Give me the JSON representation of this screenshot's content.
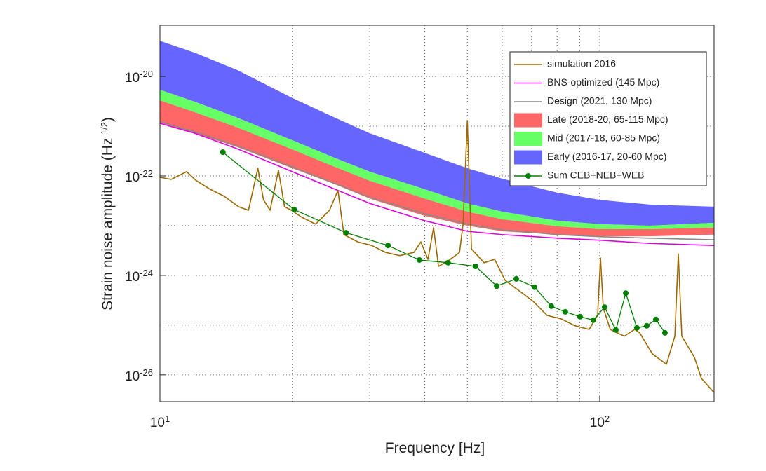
{
  "chart_data": {
    "type": "line",
    "xlabel": "Frequency [Hz]",
    "ylabel": {
      "text": "Strain noise amplitude (Hz",
      "sup": "-1/2",
      "end": ")"
    },
    "xscale": "log",
    "yscale": "log",
    "xlim": [
      10,
      182
    ],
    "ylim": [
      2.9e-27,
      1.07e-19
    ],
    "xticks": [
      {
        "value": 10,
        "label": "10",
        "exponent": "1"
      },
      {
        "value": 100,
        "label": "10",
        "exponent": "2"
      }
    ],
    "xminor": [
      20,
      30,
      40,
      50,
      60,
      70,
      80,
      90
    ],
    "yticks": [
      {
        "value": 1e-26,
        "label": "10",
        "exponent": "-26"
      },
      {
        "value": 1e-24,
        "label": "10",
        "exponent": "-24"
      },
      {
        "value": 1e-22,
        "label": "10",
        "exponent": "-22"
      },
      {
        "value": 1e-20,
        "label": "10",
        "exponent": "-20"
      }
    ],
    "yminor": [
      1e-25,
      1e-23,
      1e-21
    ],
    "grid": true,
    "legend": "upper right",
    "series": [
      {
        "name": "simulation 2016",
        "color": "#9c6a00",
        "type": "line",
        "x": [
          10,
          10.6,
          11.5,
          12.1,
          13.0,
          14.0,
          15.1,
          15.9,
          16.7,
          17.2,
          17.8,
          18.6,
          19.2,
          19.9,
          21.0,
          22.6,
          24.3,
          25.4,
          26.2,
          28.2,
          30.3,
          32.6,
          35.1,
          37.8,
          39.2,
          40.7,
          41.9,
          43.0,
          45.4,
          48.0,
          48.9,
          50.0,
          51.1,
          54.6,
          57.7,
          60.9,
          65.6,
          70.6,
          75.9,
          81.7,
          87.9,
          94.6,
          98.9,
          100.4,
          101.9,
          105.7,
          113.7,
          120.1,
          123.3,
          131.7,
          141.8,
          148.2,
          150.9,
          153.7,
          164.2,
          170.3,
          182
        ],
        "values": [
          9.4e-23,
          8.5e-23,
          1.22e-22,
          8e-23,
          5.4e-23,
          3.9e-23,
          2.4e-23,
          2.04e-23,
          1.43e-22,
          3.3e-23,
          2.04e-23,
          1.3e-22,
          2.4e-23,
          2.04e-23,
          1.48e-23,
          1.07e-23,
          2.04e-23,
          5.1e-23,
          6.6e-24,
          4.7e-24,
          4e-24,
          2.9e-24,
          2.5e-24,
          2.9e-24,
          4.7e-24,
          2.1e-24,
          9.1e-24,
          1.52e-24,
          2e-24,
          2.9e-24,
          1.07e-23,
          1.3e-21,
          3.4e-24,
          1.8e-24,
          2.1e-24,
          8e-25,
          4.9e-25,
          3e-25,
          1.57e-25,
          1.34e-25,
          9.7e-26,
          8.2e-26,
          1.57e-25,
          2.25e-24,
          2.18e-25,
          8.2e-26,
          6e-26,
          8.2e-26,
          7e-26,
          2.65e-26,
          1.63e-26,
          6e-26,
          2.7e-24,
          6e-26,
          2.25e-26,
          8.5e-27,
          4.4e-27
        ]
      },
      {
        "name": "BNS-optimized (145 Mpc)",
        "color": "#e000e0",
        "type": "line",
        "x": [
          10,
          12,
          15,
          20,
          25,
          30,
          40,
          50,
          60,
          80,
          100,
          130,
          182
        ],
        "values": [
          1.14e-21,
          7.2e-22,
          3.5e-22,
          1.22e-22,
          5.4e-23,
          2.8e-23,
          1.26e-23,
          7.7e-24,
          6.6e-24,
          5.6e-24,
          5.1e-24,
          4.4e-24,
          4e-24
        ]
      },
      {
        "name": "Design (2021, 130 Mpc)",
        "color": "#8a8a8a",
        "type": "line",
        "x": [
          10,
          12,
          15,
          20,
          25,
          30,
          40,
          50,
          60,
          80,
          100,
          130,
          182
        ],
        "values": [
          1.22e-21,
          7.7e-22,
          4e-22,
          1.52e-22,
          7e-23,
          3.7e-23,
          1.73e-23,
          1.07e-23,
          8.2e-24,
          6.6e-24,
          6e-24,
          5.6e-24,
          5.2e-24
        ]
      },
      {
        "name": "Late (2018-20, 65-115 Mpc)",
        "color": "#ff6666",
        "type": "band",
        "x": [
          10,
          12,
          15,
          20,
          25,
          30,
          40,
          50,
          60,
          80,
          100,
          130,
          182
        ],
        "upper": [
          3.3e-21,
          1.91e-21,
          9.4e-22,
          3.4e-22,
          1.52e-22,
          8e-23,
          3.5e-23,
          1.91e-23,
          1.34e-23,
          9.7e-24,
          8.5e-24,
          8.5e-24,
          9.1e-24
        ],
        "lower": [
          1.17e-21,
          7.2e-22,
          3.8e-22,
          1.43e-22,
          6.8e-23,
          3.5e-23,
          1.57e-23,
          1e-23,
          7.7e-24,
          6.6e-24,
          6.1e-24,
          6.1e-24,
          6.6e-24
        ]
      },
      {
        "name": "Mid (2017-18, 60-85 Mpc)",
        "color": "#66ff66",
        "type": "band",
        "x": [
          10,
          12,
          15,
          20,
          25,
          30,
          40,
          50,
          60,
          80,
          100,
          130,
          182
        ],
        "upper": [
          5.4e-21,
          3.1e-21,
          1.48e-21,
          5.2e-22,
          2.3e-22,
          1.22e-22,
          5.4e-23,
          2.8e-23,
          1.91e-23,
          1.26e-23,
          1.07e-23,
          1e-23,
          1.14e-23
        ],
        "lower": [
          3.3e-21,
          1.91e-21,
          9.4e-22,
          3.4e-22,
          1.52e-22,
          8e-23,
          3.5e-23,
          1.91e-23,
          1.34e-23,
          9.7e-24,
          8.5e-24,
          8.5e-24,
          9.1e-24
        ]
      },
      {
        "name": "Early (2016-17, 20-60 Mpc)",
        "color": "#6666ff",
        "type": "band",
        "x": [
          10,
          12,
          15,
          20,
          25,
          30,
          40,
          50,
          60,
          80,
          100,
          130,
          182
        ],
        "upper": [
          5.2e-20,
          3e-20,
          1.34e-20,
          3.7e-21,
          1.48e-21,
          7.2e-22,
          2.9e-22,
          1.43e-22,
          8.8e-23,
          4.6e-23,
          3.3e-23,
          2.65e-23,
          2.4e-23
        ],
        "lower": [
          5.4e-21,
          3.1e-21,
          1.48e-21,
          5.2e-22,
          2.3e-22,
          1.22e-22,
          5.4e-23,
          2.8e-23,
          1.91e-23,
          1.26e-23,
          1.07e-23,
          1e-23,
          1.14e-23
        ]
      },
      {
        "name": "Sum CEB+NEB+WEB",
        "color": "#008000",
        "type": "line",
        "marker": "circle",
        "x": [
          13.9,
          20.2,
          26.5,
          33.0,
          38.9,
          45.2,
          52.2,
          58.3,
          64.6,
          71.1,
          77.6,
          83.5,
          90.2,
          96.7,
          102.6,
          108.8,
          114.6,
          121.5,
          127.9,
          134.2,
          140.7
        ],
        "values": [
          3e-22,
          2.1e-23,
          7.2e-24,
          4e-24,
          2.04e-24,
          1.8e-24,
          1.52e-24,
          6.1e-25,
          8.5e-25,
          5.8e-25,
          2.4e-25,
          1.85e-25,
          1.48e-25,
          1.26e-25,
          2.3e-25,
          8e-26,
          4.4e-25,
          8.8e-26,
          9.7e-26,
          1.3e-25,
          7e-26
        ]
      }
    ]
  }
}
